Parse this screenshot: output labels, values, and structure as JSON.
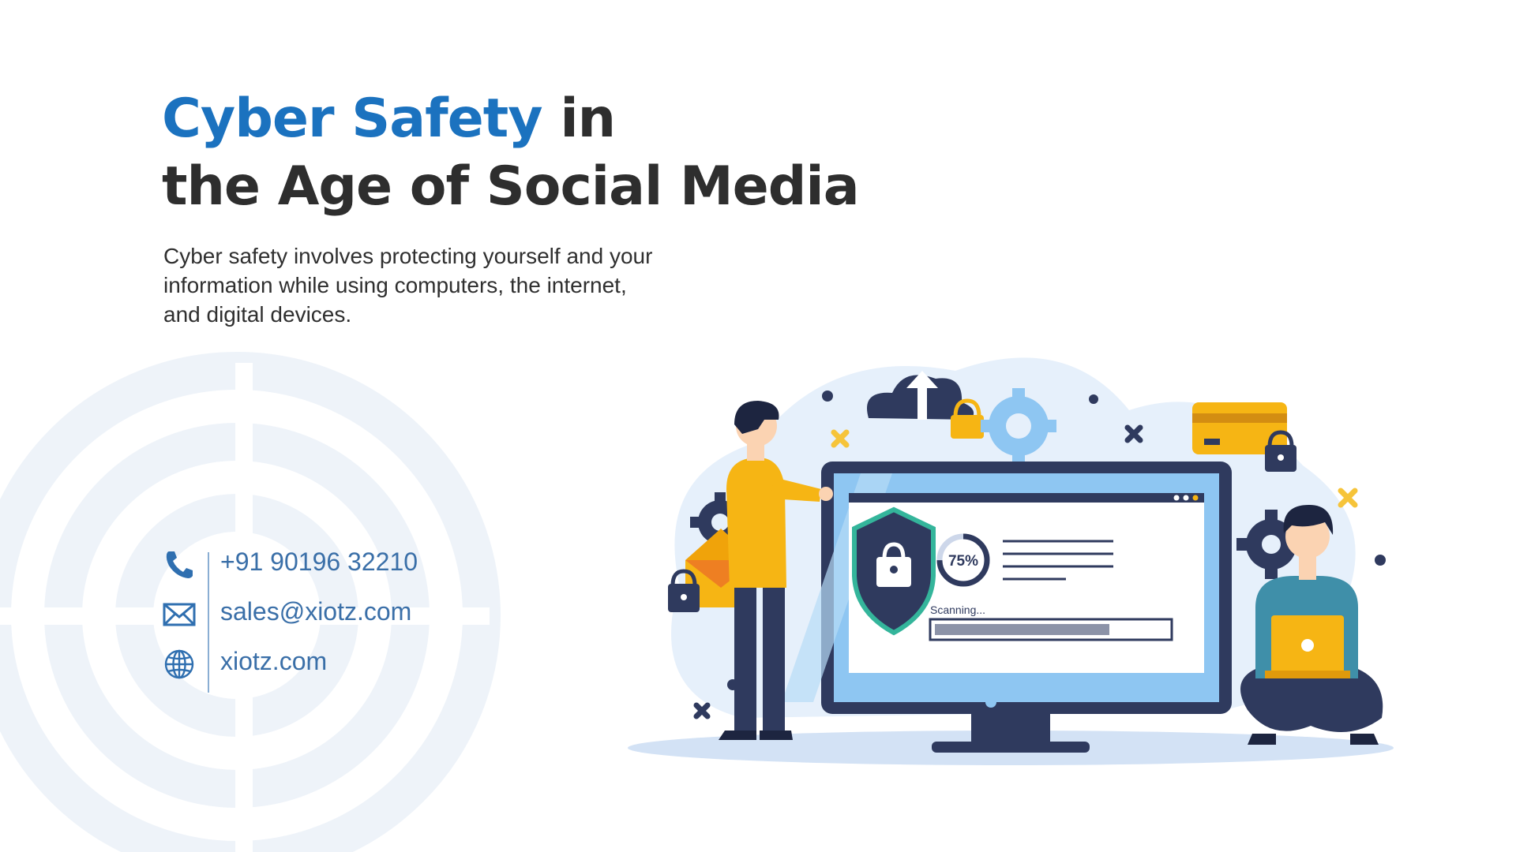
{
  "heading": {
    "accent": "Cyber Safety",
    "line1_rest": " in",
    "line2": "the Age of Social Media"
  },
  "description": "Cyber safety involves protecting yourself and your information while using computers, the internet, and digital devices.",
  "contacts": {
    "phone": "+91 90196 32210",
    "email": "sales@xiotz.com",
    "website": "xiotz.com"
  },
  "illustration": {
    "scan_percent": "75%",
    "scan_label": "Scanning...",
    "scan_progress": 0.75
  },
  "colors": {
    "accent": "#1b72bf",
    "heading": "#2e2e2e",
    "contact_text": "#3a6fa8",
    "ring": "#eef3f9",
    "navy": "#2f3a5e",
    "yellow": "#f6b514"
  },
  "icons": [
    "phone-icon",
    "mail-icon",
    "globe-icon"
  ]
}
